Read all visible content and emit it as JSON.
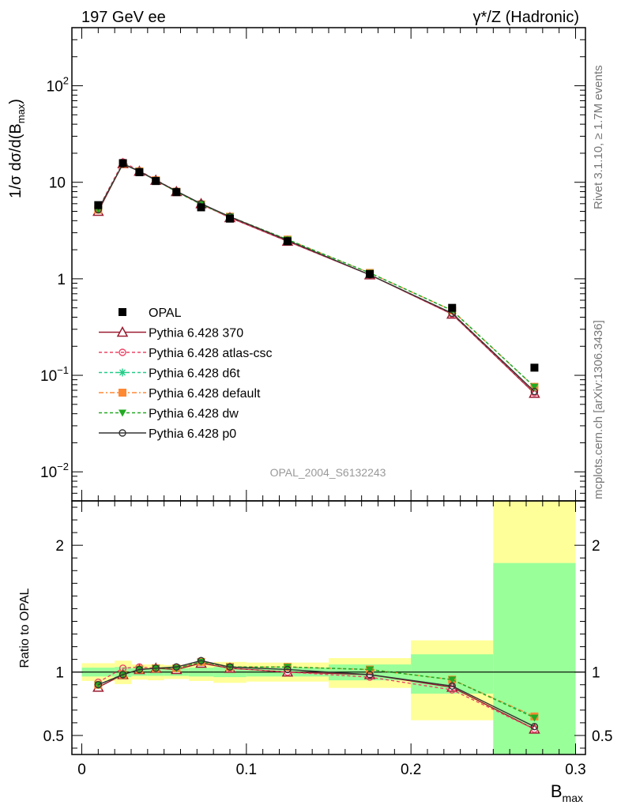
{
  "header": {
    "left": "197 GeV ee",
    "right": "γ*/Z (Hadronic)"
  },
  "side": {
    "top": "Rivet 3.1.10, ≥ 1.7M events",
    "bottom": "mcplots.cern.ch [arXiv:1306.3436]"
  },
  "watermark": "OPAL_2004_S6132243",
  "chart_data": [
    {
      "type": "line",
      "role": "main",
      "ylabel": "1/σ dσ/d(B_max)",
      "yscale": "log",
      "ylim": [
        0.005,
        400
      ],
      "xlim": [
        -0.006,
        0.306
      ],
      "yticks": [
        {
          "v": 0.01,
          "base": "10",
          "exp": "−2"
        },
        {
          "v": 0.1,
          "base": "10",
          "exp": "−1"
        },
        {
          "v": 1,
          "base": "1",
          "exp": ""
        },
        {
          "v": 10,
          "base": "10",
          "exp": ""
        },
        {
          "v": 100,
          "base": "10",
          "exp": "2"
        }
      ],
      "x": [
        0.01,
        0.025,
        0.035,
        0.045,
        0.0575,
        0.0725,
        0.09,
        0.125,
        0.175,
        0.225,
        0.275
      ],
      "data": {
        "name": "OPAL",
        "values": [
          5.8,
          15.8,
          12.7,
          10.3,
          7.9,
          5.5,
          4.2,
          2.45,
          1.12,
          0.5,
          0.12
        ]
      },
      "series": [
        {
          "name": "Pythia 6.428 370",
          "color": "#9b1b30",
          "dash": "",
          "marker": "triangle-open",
          "values": [
            5.0,
            15.6,
            13.0,
            10.5,
            8.0,
            6.0,
            4.3,
            2.45,
            1.1,
            0.43,
            0.065
          ]
        },
        {
          "name": "Pythia 6.428 atlas-csc",
          "color": "#ee4466",
          "dash": "4,3",
          "marker": "circle-open",
          "values": [
            5.3,
            16.2,
            13.2,
            10.6,
            8.1,
            5.9,
            4.3,
            2.45,
            1.1,
            0.43,
            0.066
          ]
        },
        {
          "name": "Pythia 6.428 d6t",
          "color": "#22cc88",
          "dash": "4,3",
          "marker": "asterisk",
          "values": [
            5.2,
            15.6,
            13.0,
            10.5,
            8.0,
            5.9,
            4.4,
            2.55,
            1.15,
            0.47,
            0.076
          ]
        },
        {
          "name": "Pythia 6.428 default",
          "color": "#ff8833",
          "dash": "6,3,2,3",
          "marker": "square",
          "values": [
            5.2,
            15.5,
            13.0,
            10.5,
            8.0,
            5.9,
            4.4,
            2.55,
            1.15,
            0.47,
            0.076
          ]
        },
        {
          "name": "Pythia 6.428 dw",
          "color": "#22aa22",
          "dash": "4,3",
          "marker": "triangle-down",
          "values": [
            5.2,
            15.5,
            13.0,
            10.5,
            8.0,
            5.9,
            4.4,
            2.55,
            1.15,
            0.47,
            0.076
          ]
        },
        {
          "name": "Pythia 6.428 p0",
          "color": "#333333",
          "dash": "",
          "marker": "circle-open",
          "values": [
            5.2,
            15.5,
            13.0,
            10.5,
            8.1,
            6.0,
            4.4,
            2.5,
            1.1,
            0.44,
            0.068
          ]
        }
      ]
    },
    {
      "type": "line",
      "role": "ratio",
      "ylabel": "Ratio to OPAL",
      "ylim": [
        0.35,
        2.35
      ],
      "xlim": [
        -0.006,
        0.306
      ],
      "xlabel": "B_max",
      "xticks": [
        {
          "v": 0,
          "label": "0"
        },
        {
          "v": 0.1,
          "label": "0.1"
        },
        {
          "v": 0.2,
          "label": "0.2"
        },
        {
          "v": 0.3,
          "label": "0.3"
        }
      ],
      "yticks": [
        {
          "v": 0.5,
          "label": "0.5"
        },
        {
          "v": 1,
          "label": "1"
        },
        {
          "v": 2,
          "label": "2"
        }
      ],
      "bands": [
        {
          "x0": 0.0,
          "x1": 0.02,
          "stat": [
            0.965,
            1.035
          ],
          "tot": [
            0.93,
            1.07
          ]
        },
        {
          "x0": 0.02,
          "x1": 0.03,
          "stat": [
            0.96,
            1.04
          ],
          "tot": [
            0.905,
            1.09
          ]
        },
        {
          "x0": 0.03,
          "x1": 0.04,
          "stat": [
            0.97,
            1.03
          ],
          "tot": [
            0.94,
            1.06
          ]
        },
        {
          "x0": 0.04,
          "x1": 0.05,
          "stat": [
            0.97,
            1.03
          ],
          "tot": [
            0.935,
            1.06
          ]
        },
        {
          "x0": 0.05,
          "x1": 0.065,
          "stat": [
            0.97,
            1.03
          ],
          "tot": [
            0.945,
            1.055
          ]
        },
        {
          "x0": 0.065,
          "x1": 0.08,
          "stat": [
            0.965,
            1.035
          ],
          "tot": [
            0.93,
            1.07
          ]
        },
        {
          "x0": 0.08,
          "x1": 0.1,
          "stat": [
            0.96,
            1.04
          ],
          "tot": [
            0.915,
            1.08
          ]
        },
        {
          "x0": 0.1,
          "x1": 0.15,
          "stat": [
            0.965,
            1.035
          ],
          "tot": [
            0.925,
            1.075
          ]
        },
        {
          "x0": 0.15,
          "x1": 0.2,
          "stat": [
            0.935,
            1.06
          ],
          "tot": [
            0.875,
            1.11
          ]
        },
        {
          "x0": 0.2,
          "x1": 0.25,
          "stat": [
            0.83,
            1.14
          ],
          "tot": [
            0.62,
            1.25
          ]
        },
        {
          "x0": 0.25,
          "x1": 0.3,
          "stat": [
            0.35,
            1.86
          ],
          "tot": [
            0.35,
            2.35
          ]
        }
      ],
      "series_ratio": [
        [
          0.88,
          0.98,
          1.02,
          1.03,
          1.02,
          1.07,
          1.03,
          1.0,
          0.98,
          0.88,
          0.55
        ],
        [
          0.92,
          1.03,
          1.04,
          1.03,
          1.03,
          1.08,
          1.03,
          1.0,
          0.96,
          0.86,
          0.55
        ],
        [
          0.9,
          0.98,
          1.02,
          1.03,
          1.03,
          1.08,
          1.04,
          1.04,
          1.02,
          0.94,
          0.65
        ],
        [
          0.9,
          0.98,
          1.02,
          1.03,
          1.03,
          1.08,
          1.04,
          1.04,
          1.02,
          0.94,
          0.65
        ],
        [
          0.9,
          0.98,
          1.02,
          1.03,
          1.03,
          1.08,
          1.04,
          1.04,
          1.02,
          0.94,
          0.64
        ],
        [
          0.9,
          0.98,
          1.02,
          1.03,
          1.04,
          1.09,
          1.04,
          1.02,
          0.98,
          0.89,
          0.57
        ]
      ]
    }
  ]
}
